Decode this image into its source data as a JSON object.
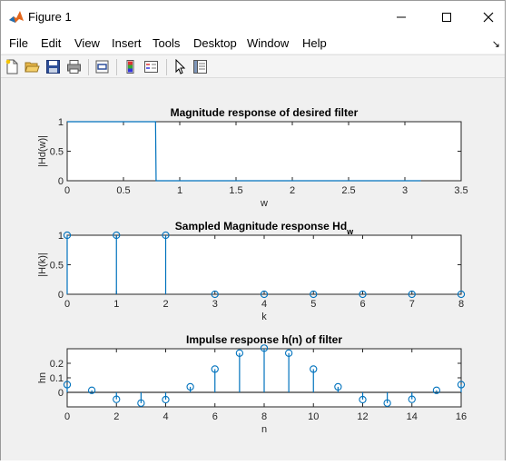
{
  "window": {
    "title": "Figure 1"
  },
  "menu": [
    "File",
    "Edit",
    "View",
    "Insert",
    "Tools",
    "Desktop",
    "Window",
    "Help"
  ],
  "toolbar": [
    "new-figure-icon",
    "open-file-icon",
    "save-icon",
    "print-icon",
    "link-plot-icon",
    "insert-colorbar-icon",
    "insert-legend-icon",
    "edit-plot-pointer-icon",
    "property-inspector-icon"
  ],
  "colors": {
    "line": "#0072BD",
    "axis": "#262626",
    "background": "#f0f0f0",
    "plot_bg": "#ffffff"
  },
  "chart_data": [
    {
      "type": "line",
      "title": "Magnitude response of desired filter",
      "xlabel": "w",
      "ylabel": "|Hd(w)|",
      "xlim": [
        0,
        3.5
      ],
      "ylim": [
        0,
        1
      ],
      "xticks": [
        "0",
        "0.5",
        "1",
        "1.5",
        "2",
        "2.5",
        "3",
        "3.5"
      ],
      "yticks": [
        "0",
        "0.5",
        "1"
      ],
      "x": [
        0,
        0.785,
        0.79,
        3.1416
      ],
      "y": [
        1,
        1,
        0,
        0
      ]
    },
    {
      "type": "stem",
      "title": "Sampled Magnitude response Hd",
      "title_sub": "w",
      "xlabel": "k",
      "ylabel": "|H(k)|",
      "xlim": [
        0,
        8
      ],
      "ylim": [
        0,
        1
      ],
      "xticks": [
        "0",
        "1",
        "2",
        "3",
        "4",
        "5",
        "6",
        "7",
        "8"
      ],
      "yticks": [
        "0",
        "0.5",
        "1"
      ],
      "x": [
        0,
        1,
        2,
        3,
        4,
        5,
        6,
        7,
        8
      ],
      "y": [
        1,
        1,
        1,
        0,
        0,
        0,
        0,
        0,
        0
      ]
    },
    {
      "type": "stem",
      "title": "Impulse response h(n) of filter",
      "xlabel": "n",
      "ylabel": "hn",
      "xlim": [
        0,
        16
      ],
      "ylim": [
        -0.1,
        0.3
      ],
      "xticks": [
        "0",
        "2",
        "4",
        "6",
        "8",
        "10",
        "12",
        "14",
        "16"
      ],
      "yticks": [
        "0",
        "0.1",
        "0.2"
      ],
      "x": [
        0,
        1,
        2,
        3,
        4,
        5,
        6,
        7,
        8,
        9,
        10,
        11,
        12,
        13,
        14,
        15,
        16
      ],
      "y": [
        0.053,
        0.014,
        -0.048,
        -0.074,
        -0.05,
        0.038,
        0.16,
        0.27,
        0.304,
        0.27,
        0.16,
        0.038,
        -0.05,
        -0.074,
        -0.048,
        0.014,
        0.053
      ]
    }
  ]
}
